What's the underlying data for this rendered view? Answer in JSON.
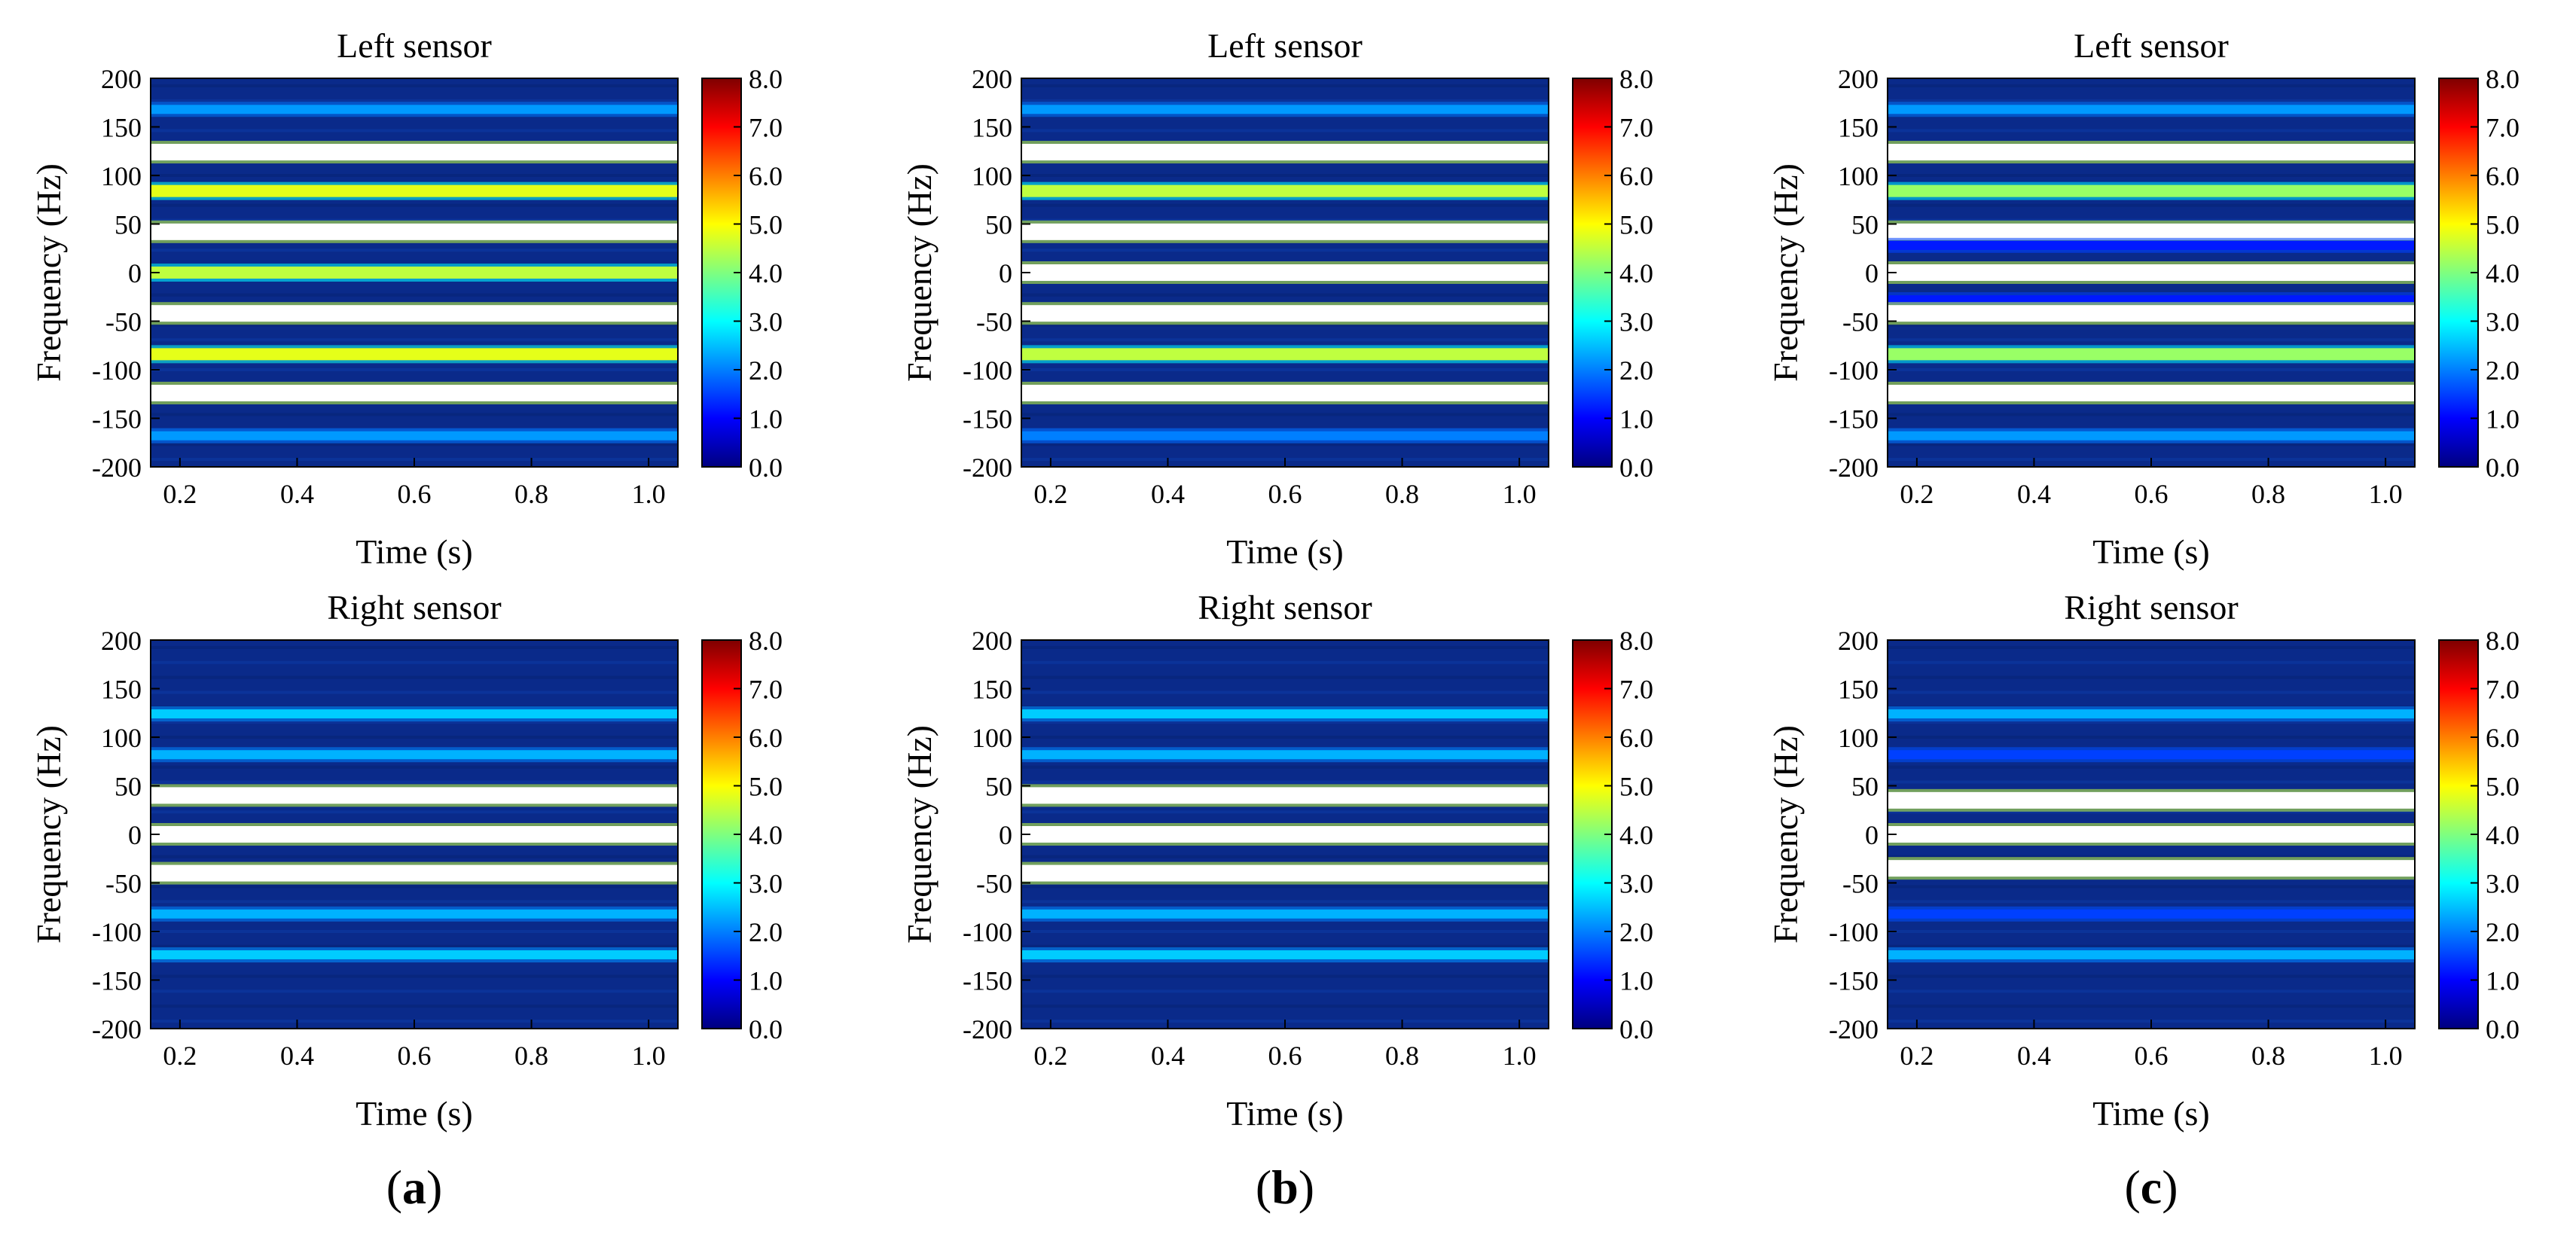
{
  "colors": {
    "colormap": [
      "#00007f",
      "#0000ff",
      "#007fff",
      "#00ffff",
      "#7fff7f",
      "#ffff00",
      "#ff7f00",
      "#ff0000",
      "#7f0000"
    ],
    "saturated": "#ffffff",
    "background": "#0a2a8a"
  },
  "panel_labels": [
    "(a)",
    "(b)",
    "(c)"
  ],
  "chart_data": [
    {
      "type": "heatmap",
      "panel": "(a)",
      "title": "Left sensor",
      "xlabel": "Time (s)",
      "ylabel": "Frequency (Hz)",
      "xlim": [
        0.15,
        1.05
      ],
      "ylim": [
        -200,
        200
      ],
      "xticks": [
        "0.2",
        "0.4",
        "0.6",
        "0.8",
        "1.0"
      ],
      "yticks": [
        "200",
        "150",
        "100",
        "50",
        "0",
        "-50",
        "-100",
        "-150",
        "-200"
      ],
      "colorbar": {
        "min": 0,
        "max": 8,
        "ticks": [
          "8.0",
          "7.0",
          "6.0",
          "5.0",
          "4.0",
          "3.0",
          "2.0",
          "1.0",
          "0.0"
        ]
      },
      "bands": [
        {
          "frequency": 168,
          "intensity": 2.2
        },
        {
          "frequency": 124,
          "intensity": 9.0
        },
        {
          "frequency": 84,
          "intensity": 4.8
        },
        {
          "frequency": 42,
          "intensity": 9.0
        },
        {
          "frequency": 0,
          "intensity": 4.5
        },
        {
          "frequency": -42,
          "intensity": 9.0
        },
        {
          "frequency": -84,
          "intensity": 4.8
        },
        {
          "frequency": -124,
          "intensity": 9.0
        },
        {
          "frequency": -168,
          "intensity": 2.2
        }
      ]
    },
    {
      "type": "heatmap",
      "panel": "(b)",
      "title": "Left sensor",
      "xlabel": "Time (s)",
      "ylabel": "Frequency (Hz)",
      "xlim": [
        0.15,
        1.05
      ],
      "ylim": [
        -200,
        200
      ],
      "xticks": [
        "0.2",
        "0.4",
        "0.6",
        "0.8",
        "1.0"
      ],
      "yticks": [
        "200",
        "150",
        "100",
        "50",
        "0",
        "-50",
        "-100",
        "-150",
        "-200"
      ],
      "colorbar": {
        "min": 0,
        "max": 8,
        "ticks": [
          "8.0",
          "7.0",
          "6.0",
          "5.0",
          "4.0",
          "3.0",
          "2.0",
          "1.0",
          "0.0"
        ]
      },
      "bands": [
        {
          "frequency": 168,
          "intensity": 2.2
        },
        {
          "frequency": 124,
          "intensity": 9.0
        },
        {
          "frequency": 84,
          "intensity": 4.5
        },
        {
          "frequency": 42,
          "intensity": 9.0
        },
        {
          "frequency": 0,
          "intensity": 9.0
        },
        {
          "frequency": -42,
          "intensity": 9.0
        },
        {
          "frequency": -84,
          "intensity": 4.5
        },
        {
          "frequency": -124,
          "intensity": 9.0
        },
        {
          "frequency": -168,
          "intensity": 2.0
        }
      ]
    },
    {
      "type": "heatmap",
      "panel": "(c)",
      "title": "Left sensor",
      "xlabel": "Time (s)",
      "ylabel": "Frequency (Hz)",
      "xlim": [
        0.15,
        1.05
      ],
      "ylim": [
        -200,
        200
      ],
      "xticks": [
        "0.2",
        "0.4",
        "0.6",
        "0.8",
        "1.0"
      ],
      "yticks": [
        "200",
        "150",
        "100",
        "50",
        "0",
        "-50",
        "-100",
        "-150",
        "-200"
      ],
      "colorbar": {
        "min": 0,
        "max": 8,
        "ticks": [
          "8.0",
          "7.0",
          "6.0",
          "5.0",
          "4.0",
          "3.0",
          "2.0",
          "1.0",
          "0.0"
        ]
      },
      "bands": [
        {
          "frequency": 168,
          "intensity": 2.2
        },
        {
          "frequency": 124,
          "intensity": 9.0
        },
        {
          "frequency": 84,
          "intensity": 4.2
        },
        {
          "frequency": 42,
          "intensity": 9.0
        },
        {
          "frequency": 28,
          "intensity": 1.2
        },
        {
          "frequency": 0,
          "intensity": 9.0
        },
        {
          "frequency": -28,
          "intensity": 1.2
        },
        {
          "frequency": -42,
          "intensity": 9.0
        },
        {
          "frequency": -84,
          "intensity": 4.2
        },
        {
          "frequency": -124,
          "intensity": 9.0
        },
        {
          "frequency": -168,
          "intensity": 2.2
        }
      ]
    },
    {
      "type": "heatmap",
      "panel": "(a)",
      "title": "Right sensor",
      "xlabel": "Time (s)",
      "ylabel": "Frequency (Hz)",
      "xlim": [
        0.15,
        1.05
      ],
      "ylim": [
        -200,
        200
      ],
      "xticks": [
        "0.2",
        "0.4",
        "0.6",
        "0.8",
        "1.0"
      ],
      "yticks": [
        "200",
        "150",
        "100",
        "50",
        "0",
        "-50",
        "-100",
        "-150",
        "-200"
      ],
      "colorbar": {
        "min": 0,
        "max": 8,
        "ticks": [
          "8.0",
          "7.0",
          "6.0",
          "5.0",
          "4.0",
          "3.0",
          "2.0",
          "1.0",
          "0.0"
        ]
      },
      "bands": [
        {
          "frequency": 124,
          "intensity": 2.6
        },
        {
          "frequency": 82,
          "intensity": 2.4
        },
        {
          "frequency": 40,
          "intensity": 9.0
        },
        {
          "frequency": 0,
          "intensity": 9.0
        },
        {
          "frequency": -40,
          "intensity": 9.0
        },
        {
          "frequency": -82,
          "intensity": 2.4
        },
        {
          "frequency": -124,
          "intensity": 2.6
        }
      ]
    },
    {
      "type": "heatmap",
      "panel": "(b)",
      "title": "Right sensor",
      "xlabel": "Time (s)",
      "ylabel": "Frequency (Hz)",
      "xlim": [
        0.15,
        1.05
      ],
      "ylim": [
        -200,
        200
      ],
      "xticks": [
        "0.2",
        "0.4",
        "0.6",
        "0.8",
        "1.0"
      ],
      "yticks": [
        "200",
        "150",
        "100",
        "50",
        "0",
        "-50",
        "-100",
        "-150",
        "-200"
      ],
      "colorbar": {
        "min": 0,
        "max": 8,
        "ticks": [
          "8.0",
          "7.0",
          "6.0",
          "5.0",
          "4.0",
          "3.0",
          "2.0",
          "1.0",
          "0.0"
        ]
      },
      "bands": [
        {
          "frequency": 124,
          "intensity": 2.6
        },
        {
          "frequency": 82,
          "intensity": 2.4
        },
        {
          "frequency": 40,
          "intensity": 9.0
        },
        {
          "frequency": 0,
          "intensity": 9.0
        },
        {
          "frequency": -40,
          "intensity": 9.0
        },
        {
          "frequency": -82,
          "intensity": 2.4
        },
        {
          "frequency": -124,
          "intensity": 2.6
        }
      ]
    },
    {
      "type": "heatmap",
      "panel": "(c)",
      "title": "Right sensor",
      "xlabel": "Time (s)",
      "ylabel": "Frequency (Hz)",
      "xlim": [
        0.15,
        1.05
      ],
      "ylim": [
        -200,
        200
      ],
      "xticks": [
        "0.2",
        "0.4",
        "0.6",
        "0.8",
        "1.0"
      ],
      "yticks": [
        "200",
        "150",
        "100",
        "50",
        "0",
        "-50",
        "-100",
        "-150",
        "-200"
      ],
      "colorbar": {
        "min": 0,
        "max": 8,
        "ticks": [
          "8.0",
          "7.0",
          "6.0",
          "5.0",
          "4.0",
          "3.0",
          "2.0",
          "1.0",
          "0.0"
        ]
      },
      "bands": [
        {
          "frequency": 124,
          "intensity": 2.4
        },
        {
          "frequency": 82,
          "intensity": 1.5
        },
        {
          "frequency": 35,
          "intensity": 9.0
        },
        {
          "frequency": 0,
          "intensity": 9.0
        },
        {
          "frequency": -35,
          "intensity": 9.0
        },
        {
          "frequency": -82,
          "intensity": 1.5
        },
        {
          "frequency": -124,
          "intensity": 2.4
        }
      ]
    }
  ]
}
